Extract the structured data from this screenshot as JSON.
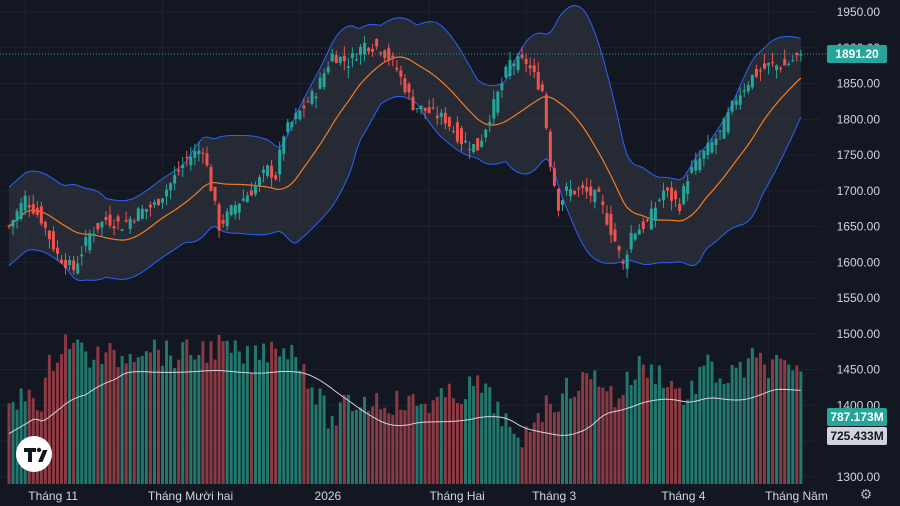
{
  "chart_data": {
    "type": "candlestick",
    "price_axis": {
      "min": 1300,
      "max": 1950,
      "ticks": [
        "1950.00",
        "1900.00",
        "1850.00",
        "1800.00",
        "1750.00",
        "1700.00",
        "1650.00",
        "1600.00",
        "1550.00",
        "1500.00",
        "1450.00",
        "1400.00",
        "1350.00",
        "1300.00"
      ]
    },
    "time_axis": {
      "labels": [
        "Tháng 11",
        "Tháng Mười hai",
        "2026",
        "Tháng Hai",
        "Tháng 3",
        "Tháng 4",
        "Tháng Năm"
      ],
      "label_bar_index": [
        4,
        38,
        72,
        104,
        128,
        160,
        188
      ]
    },
    "last_price_label": "1891.20",
    "last_price": 1891.2,
    "volume_labels": [
      "787.173M",
      "725.433M"
    ],
    "volume_level": 787.173,
    "volume_avg_level": 725.433,
    "colors": {
      "up": "#26a69a",
      "down": "#ef5350",
      "up_volume": "#22786d",
      "down_volume": "#8b3a44",
      "ma": "#f57c1f",
      "band": "#2962ff",
      "band_fill": "#363a45",
      "volume_ma": "#d1d4dc",
      "background": "#131722"
    },
    "indicators": [
      "Bollinger Bands",
      "Volume",
      "Volume MA"
    ],
    "candle_anchors": [
      [
        0,
        1650
      ],
      [
        4,
        1690
      ],
      [
        8,
        1660
      ],
      [
        12,
        1610
      ],
      [
        16,
        1590
      ],
      [
        20,
        1640
      ],
      [
        24,
        1660
      ],
      [
        28,
        1652
      ],
      [
        32,
        1670
      ],
      [
        36,
        1680
      ],
      [
        40,
        1710
      ],
      [
        44,
        1745
      ],
      [
        48,
        1760
      ],
      [
        50,
        1705
      ],
      [
        52,
        1650
      ],
      [
        56,
        1680
      ],
      [
        60,
        1700
      ],
      [
        64,
        1730
      ],
      [
        66,
        1720
      ],
      [
        68,
        1780
      ],
      [
        72,
        1810
      ],
      [
        76,
        1840
      ],
      [
        80,
        1890
      ],
      [
        84,
        1880
      ],
      [
        88,
        1905
      ],
      [
        92,
        1900
      ],
      [
        96,
        1870
      ],
      [
        100,
        1820
      ],
      [
        104,
        1810
      ],
      [
        108,
        1800
      ],
      [
        112,
        1770
      ],
      [
        116,
        1760
      ],
      [
        120,
        1820
      ],
      [
        124,
        1880
      ],
      [
        128,
        1880
      ],
      [
        132,
        1840
      ],
      [
        134,
        1740
      ],
      [
        136,
        1680
      ],
      [
        138,
        1700
      ],
      [
        142,
        1700
      ],
      [
        146,
        1690
      ],
      [
        150,
        1630
      ],
      [
        152,
        1595
      ],
      [
        154,
        1640
      ],
      [
        158,
        1655
      ],
      [
        162,
        1700
      ],
      [
        166,
        1680
      ],
      [
        168,
        1720
      ],
      [
        172,
        1752
      ],
      [
        176,
        1780
      ],
      [
        180,
        1830
      ],
      [
        184,
        1860
      ],
      [
        188,
        1875
      ],
      [
        192,
        1875
      ],
      [
        196,
        1891
      ]
    ],
    "volume_anchors": [
      [
        0,
        410
      ],
      [
        6,
        380
      ],
      [
        8,
        410
      ],
      [
        10,
        360
      ],
      [
        14,
        330
      ],
      [
        20,
        350
      ],
      [
        28,
        350
      ],
      [
        34,
        335
      ],
      [
        40,
        350
      ],
      [
        46,
        345
      ],
      [
        52,
        340
      ],
      [
        60,
        355
      ],
      [
        66,
        335
      ],
      [
        72,
        350
      ],
      [
        76,
        390
      ],
      [
        80,
        420
      ],
      [
        84,
        400
      ],
      [
        90,
        395
      ],
      [
        100,
        400
      ],
      [
        108,
        395
      ],
      [
        116,
        380
      ],
      [
        122,
        410
      ],
      [
        126,
        450
      ],
      [
        130,
        410
      ],
      [
        134,
        400
      ],
      [
        140,
        380
      ],
      [
        146,
        370
      ],
      [
        150,
        395
      ],
      [
        156,
        360
      ],
      [
        162,
        370
      ],
      [
        168,
        395
      ],
      [
        172,
        360
      ],
      [
        178,
        375
      ],
      [
        184,
        355
      ],
      [
        190,
        360
      ],
      [
        196,
        375
      ]
    ]
  }
}
